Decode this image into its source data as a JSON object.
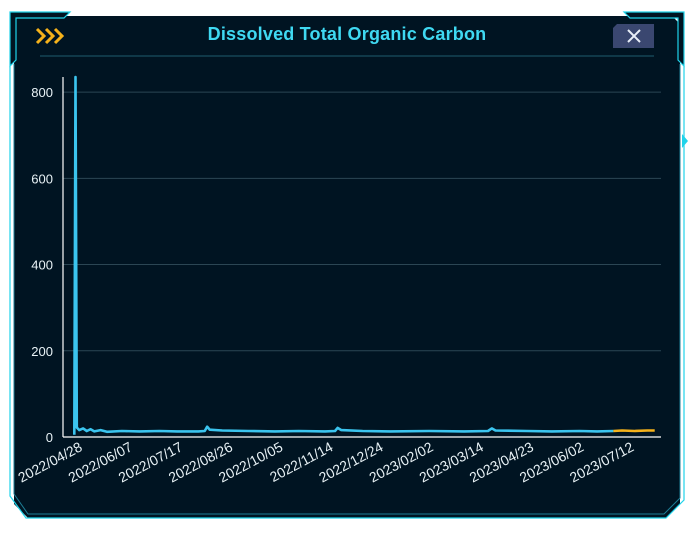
{
  "panel": {
    "title": "Dissolved Total Organic Carbon",
    "chevron_icon": "triple-chevron-right-icon",
    "close_icon": "close-icon",
    "colors": {
      "background": "#001422",
      "border": "#1fd3ea",
      "title": "#3fd9f2",
      "chevron": "#f5b21b",
      "close_bg": "#3a4770"
    }
  },
  "chart_data": {
    "type": "line",
    "title": "Dissolved Total Organic Carbon",
    "xlabel": "",
    "ylabel": "",
    "ylim": [
      0,
      835
    ],
    "xlim": [
      "2022-04-15",
      "2023-08-05"
    ],
    "y_ticks": [
      0,
      200,
      400,
      600,
      800
    ],
    "x_tick_labels": [
      "2022/04/28",
      "2022/06/07",
      "2022/07/17",
      "2022/08/26",
      "2022/10/05",
      "2022/11/14",
      "2022/12/24",
      "2023/02/02",
      "2023/03/14",
      "2023/04/23",
      "2023/06/02",
      "2023/07/12"
    ],
    "grid": true,
    "legend": "none",
    "series": [
      {
        "color": "#3bc4ee",
        "points": [
          [
            "2022-04-24",
            5
          ],
          [
            "2022-04-25",
            835
          ],
          [
            "2022-04-26",
            22
          ],
          [
            "2022-04-28",
            16
          ],
          [
            "2022-05-01",
            20
          ],
          [
            "2022-05-04",
            14
          ],
          [
            "2022-05-07",
            18
          ],
          [
            "2022-05-10",
            13
          ],
          [
            "2022-05-15",
            16
          ],
          [
            "2022-05-20",
            12
          ],
          [
            "2022-06-01",
            14
          ],
          [
            "2022-06-15",
            13
          ],
          [
            "2022-07-01",
            14
          ],
          [
            "2022-07-15",
            13
          ],
          [
            "2022-08-01",
            13
          ],
          [
            "2022-08-06",
            14
          ],
          [
            "2022-08-08",
            24
          ],
          [
            "2022-08-10",
            17
          ],
          [
            "2022-08-20",
            15
          ],
          [
            "2022-09-10",
            14
          ],
          [
            "2022-10-01",
            13
          ],
          [
            "2022-10-20",
            14
          ],
          [
            "2022-11-10",
            13
          ],
          [
            "2022-11-18",
            14
          ],
          [
            "2022-11-20",
            21
          ],
          [
            "2022-11-23",
            16
          ],
          [
            "2022-12-10",
            14
          ],
          [
            "2023-01-01",
            13
          ],
          [
            "2023-02-01",
            14
          ],
          [
            "2023-03-01",
            13
          ],
          [
            "2023-03-20",
            14
          ],
          [
            "2023-03-23",
            20
          ],
          [
            "2023-03-26",
            15
          ],
          [
            "2023-04-20",
            14
          ],
          [
            "2023-05-10",
            13
          ],
          [
            "2023-06-01",
            14
          ],
          [
            "2023-06-15",
            13
          ],
          [
            "2023-06-28",
            14
          ]
        ]
      },
      {
        "color": "#f5b21b",
        "points": [
          [
            "2023-06-28",
            14
          ],
          [
            "2023-07-05",
            15
          ],
          [
            "2023-07-15",
            14
          ],
          [
            "2023-07-25",
            15
          ],
          [
            "2023-07-31",
            15
          ]
        ]
      }
    ]
  }
}
